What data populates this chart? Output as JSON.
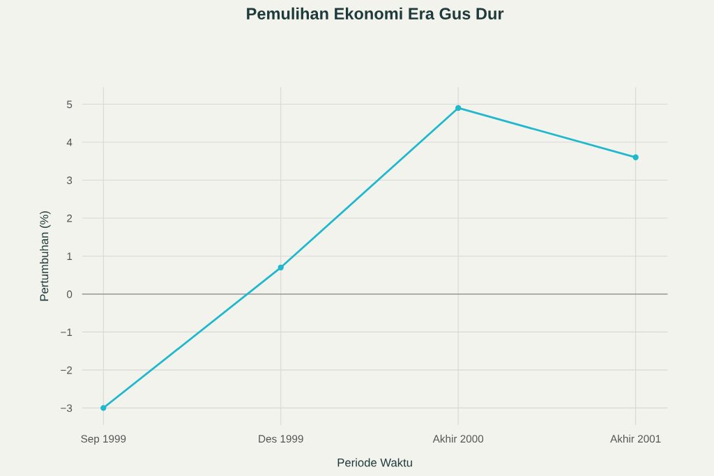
{
  "chart_data": {
    "type": "line",
    "title": "Pemulihan Ekonomi Era Gus Dur",
    "xlabel": "Periode Waktu",
    "ylabel": "Pertumbuhan (%)",
    "categories": [
      "Sep 1999",
      "Des 1999",
      "Akhir 2000",
      "Akhir 2001"
    ],
    "series": [
      {
        "color": "#1fb8cd",
        "values": [
          -3.0,
          0.7,
          4.9,
          3.6
        ]
      }
    ],
    "ylim": [
      -3.45,
      5.45
    ],
    "yticks": [
      {
        "value": -3,
        "label": "−3"
      },
      {
        "value": -2,
        "label": "−2"
      },
      {
        "value": -1,
        "label": "−1"
      },
      0,
      1,
      2,
      3,
      4,
      5
    ],
    "ref_lines": [
      {
        "axis": "y",
        "value": 0,
        "label": null,
        "color": "#999999"
      }
    ],
    "grid": true,
    "marker": "circle",
    "line_style": "solid"
  }
}
